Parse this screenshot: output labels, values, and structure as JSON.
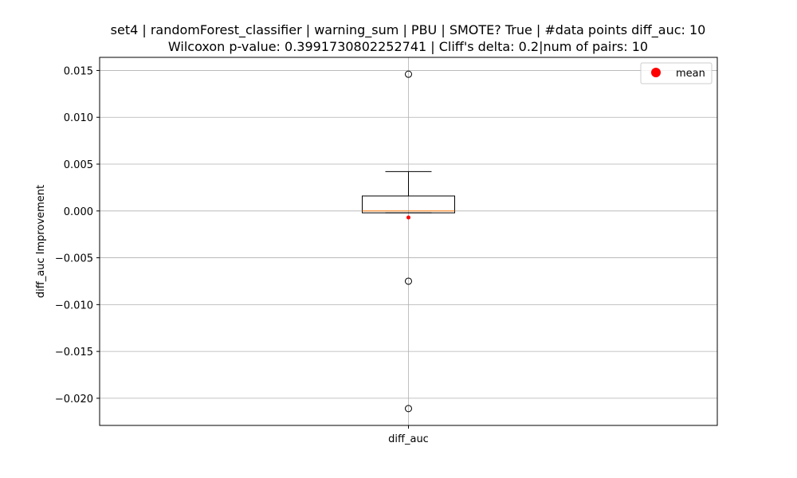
{
  "chart_data": {
    "type": "box",
    "title": "set4 | randomForest_classifier | warning_sum | PBU | SMOTE? True | #data points diff_auc: 10",
    "subtitle": "Wilcoxon p-value: 0.3991730802252741 | Cliff's delta: 0.2|num of pairs: 10",
    "xlabel": "",
    "ylabel": "diff_auc Improvement",
    "categories": [
      "diff_auc"
    ],
    "ylim": [
      -0.0229,
      0.0164
    ],
    "yticks": [
      -0.02,
      -0.015,
      -0.01,
      -0.005,
      0.0,
      0.005,
      0.01,
      0.015
    ],
    "ytick_labels": [
      "−0.020",
      "−0.015",
      "−0.010",
      "−0.005",
      "0.000",
      "0.005",
      "0.010",
      "0.015"
    ],
    "grid": true,
    "legend": {
      "placement": "top-right",
      "entries": [
        "mean"
      ]
    },
    "series": [
      {
        "category": "diff_auc",
        "whisker_low": -0.0002,
        "q1": -0.0002,
        "median": 0.0,
        "q3": 0.0016,
        "whisker_high": 0.0042,
        "mean": -0.0007,
        "outliers": [
          0.0146,
          -0.0075,
          -0.0211
        ]
      }
    ],
    "colors": {
      "box": "#000000",
      "median": "#ff7f0e",
      "mean": "#ff0000",
      "grid": "#b0b0b0"
    }
  }
}
